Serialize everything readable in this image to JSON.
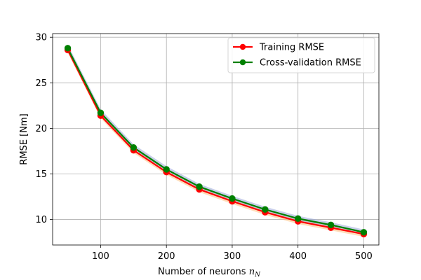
{
  "chart_data": {
    "type": "line",
    "title": "",
    "xlabel": "Number of neurons",
    "xlabel_math": "N",
    "ylabel": "RMSE [Nm]",
    "xlim": [
      27,
      523
    ],
    "ylim": [
      7.2,
      30.4
    ],
    "xticks": [
      100,
      200,
      300,
      400,
      500
    ],
    "yticks": [
      10,
      15,
      20,
      25,
      30
    ],
    "grid": true,
    "legend_position": "top-right",
    "x": [
      50,
      100,
      150,
      200,
      250,
      300,
      350,
      400,
      450,
      500
    ],
    "series": [
      {
        "name": "Training RMSE",
        "color": "#ff0000",
        "band_color": "#ffbf80",
        "values": [
          28.6,
          21.4,
          17.6,
          15.2,
          13.3,
          12.0,
          10.8,
          9.8,
          9.1,
          8.4
        ],
        "band": [
          0.3,
          0.3,
          0.3,
          0.3,
          0.3,
          0.3,
          0.3,
          0.3,
          0.3,
          0.3
        ]
      },
      {
        "name": "Cross-validation RMSE",
        "color": "#008000",
        "band_color": "#9aa8d8",
        "values": [
          28.8,
          21.7,
          17.9,
          15.5,
          13.6,
          12.3,
          11.1,
          10.1,
          9.4,
          8.6
        ],
        "band": [
          0.4,
          0.4,
          0.35,
          0.35,
          0.3,
          0.3,
          0.3,
          0.3,
          0.3,
          0.3
        ]
      }
    ]
  }
}
